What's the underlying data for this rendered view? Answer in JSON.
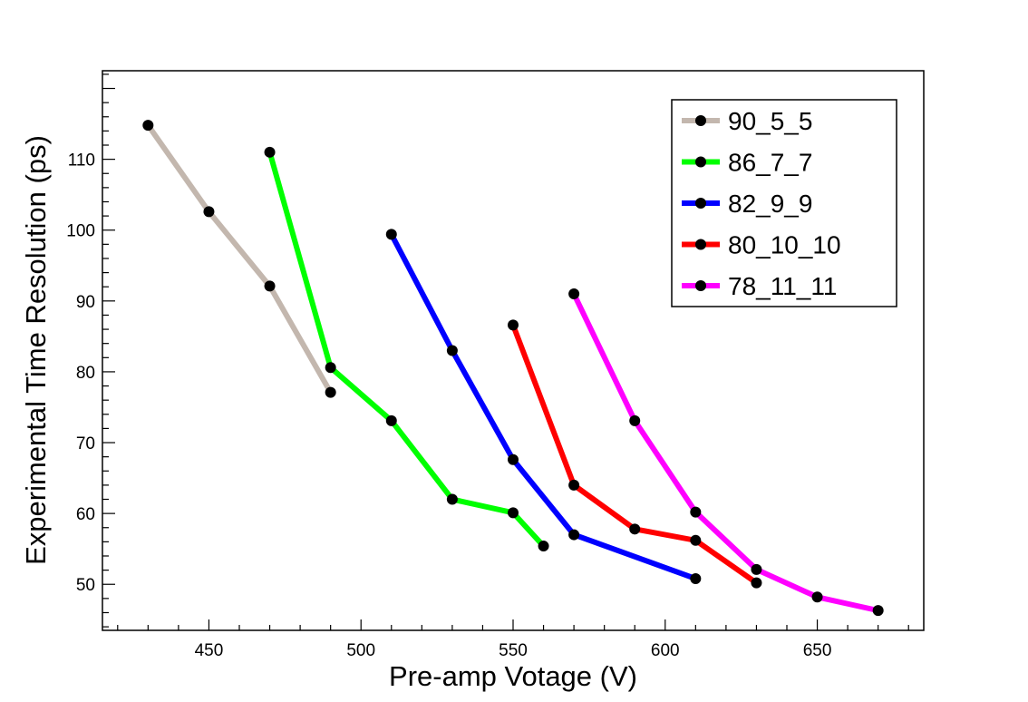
{
  "chart_data": {
    "type": "line",
    "title": "",
    "xlabel": "Pre-amp Votage (V)",
    "ylabel": "Experimental Time Resolution (ps)",
    "xlim": [
      415,
      685
    ],
    "ylim": [
      43.5,
      122.5
    ],
    "x_ticks": [
      450,
      500,
      550,
      600,
      650
    ],
    "y_ticks": [
      50,
      60,
      70,
      80,
      90,
      100,
      110
    ],
    "legend_position": "top-right",
    "grid": false,
    "series": [
      {
        "name": "90_5_5",
        "color": "#c3b7ae",
        "x": [
          430,
          450,
          470,
          490
        ],
        "y": [
          114.8,
          102.6,
          92.1,
          77.1
        ]
      },
      {
        "name": "86_7_7",
        "color": "#00ff00",
        "x": [
          470,
          490,
          510,
          530,
          550,
          560
        ],
        "y": [
          111.0,
          80.6,
          73.1,
          62.0,
          60.1,
          55.4
        ]
      },
      {
        "name": "82_9_9",
        "color": "#0000ff",
        "x": [
          510,
          530,
          550,
          570,
          610
        ],
        "y": [
          99.4,
          83.0,
          67.6,
          57.0,
          50.8
        ]
      },
      {
        "name": "80_10_10",
        "color": "#ff0000",
        "x": [
          550,
          570,
          590,
          610,
          630
        ],
        "y": [
          86.6,
          64.0,
          57.8,
          56.2,
          50.2
        ]
      },
      {
        "name": "78_11_11",
        "color": "#ff00ff",
        "x": [
          570,
          590,
          610,
          630,
          650,
          670
        ],
        "y": [
          91.0,
          73.1,
          60.2,
          52.1,
          48.2,
          46.3
        ]
      }
    ]
  }
}
